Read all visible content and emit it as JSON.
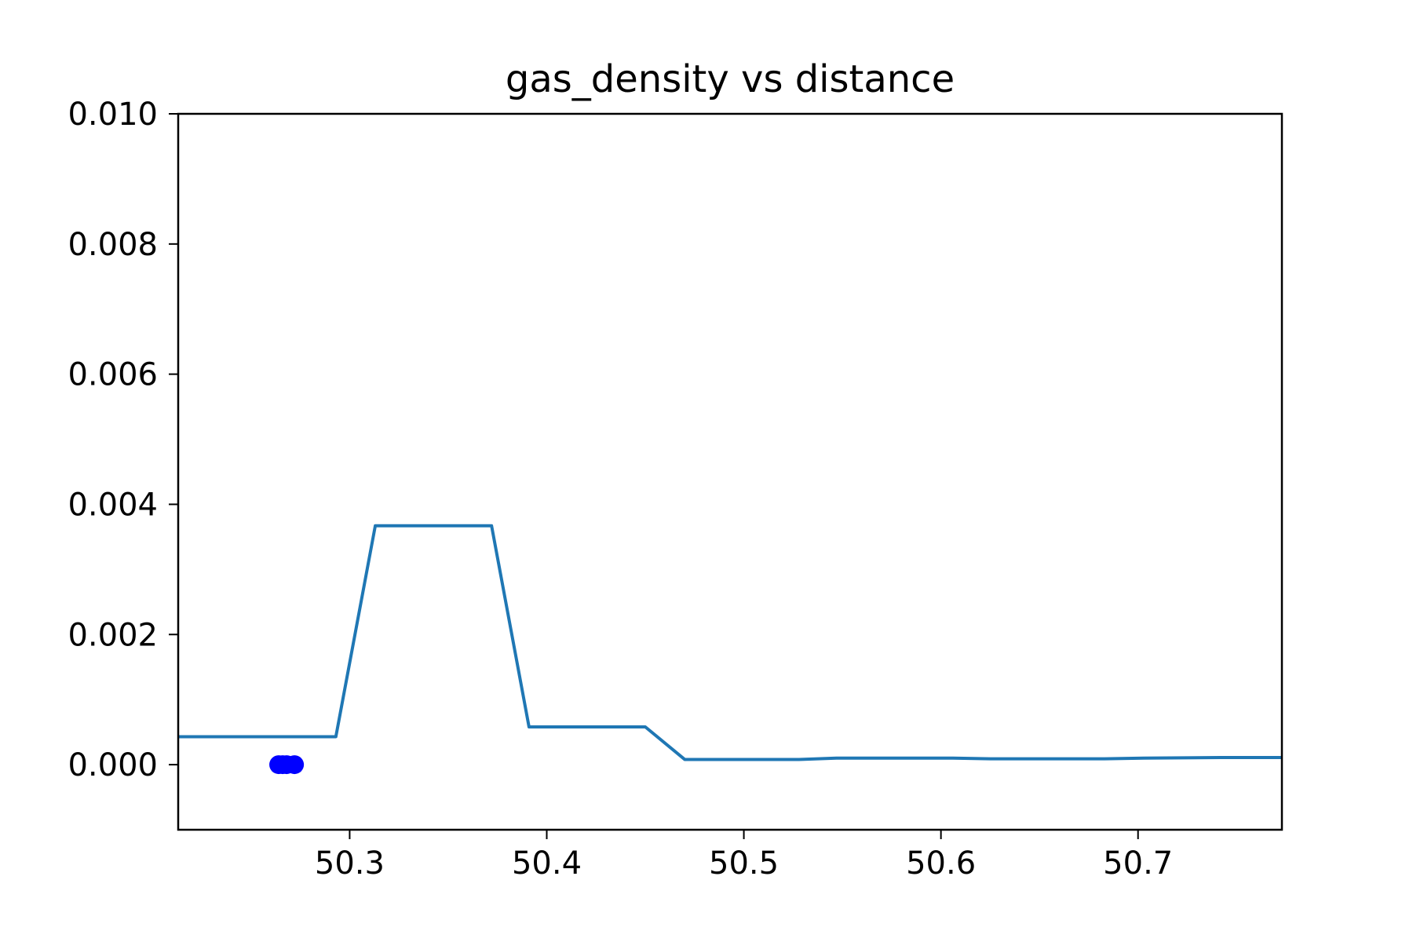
{
  "chart_data": {
    "type": "line",
    "title": "gas_density vs distance",
    "xlabel": "",
    "ylabel": "",
    "xlim": [
      50.213,
      50.773
    ],
    "ylim": [
      -0.001,
      0.01
    ],
    "x_ticks": [
      "50.3",
      "50.4",
      "50.5",
      "50.6",
      "50.7"
    ],
    "y_ticks": [
      "0.000",
      "0.002",
      "0.004",
      "0.006",
      "0.008",
      "0.010"
    ],
    "grid": false,
    "colors": {
      "line": "#1f77b4",
      "points": "#0000ff",
      "axes": "#000000"
    },
    "series": [
      {
        "type": "line",
        "x": [
          50.213,
          50.293,
          50.313,
          50.372,
          50.391,
          50.45,
          50.47,
          50.528,
          50.547,
          50.606,
          50.625,
          50.683,
          50.703,
          50.742,
          50.773
        ],
        "y": [
          0.00043,
          0.00043,
          0.00367,
          0.00367,
          0.00058,
          0.00058,
          8e-05,
          8e-05,
          0.0001,
          0.0001,
          9e-05,
          9e-05,
          0.0001,
          0.00011,
          0.00011
        ]
      },
      {
        "type": "scatter",
        "x": [
          50.264,
          50.266,
          50.268,
          50.272
        ],
        "y": [
          0.0,
          0.0,
          0.0,
          0.0
        ]
      }
    ]
  }
}
